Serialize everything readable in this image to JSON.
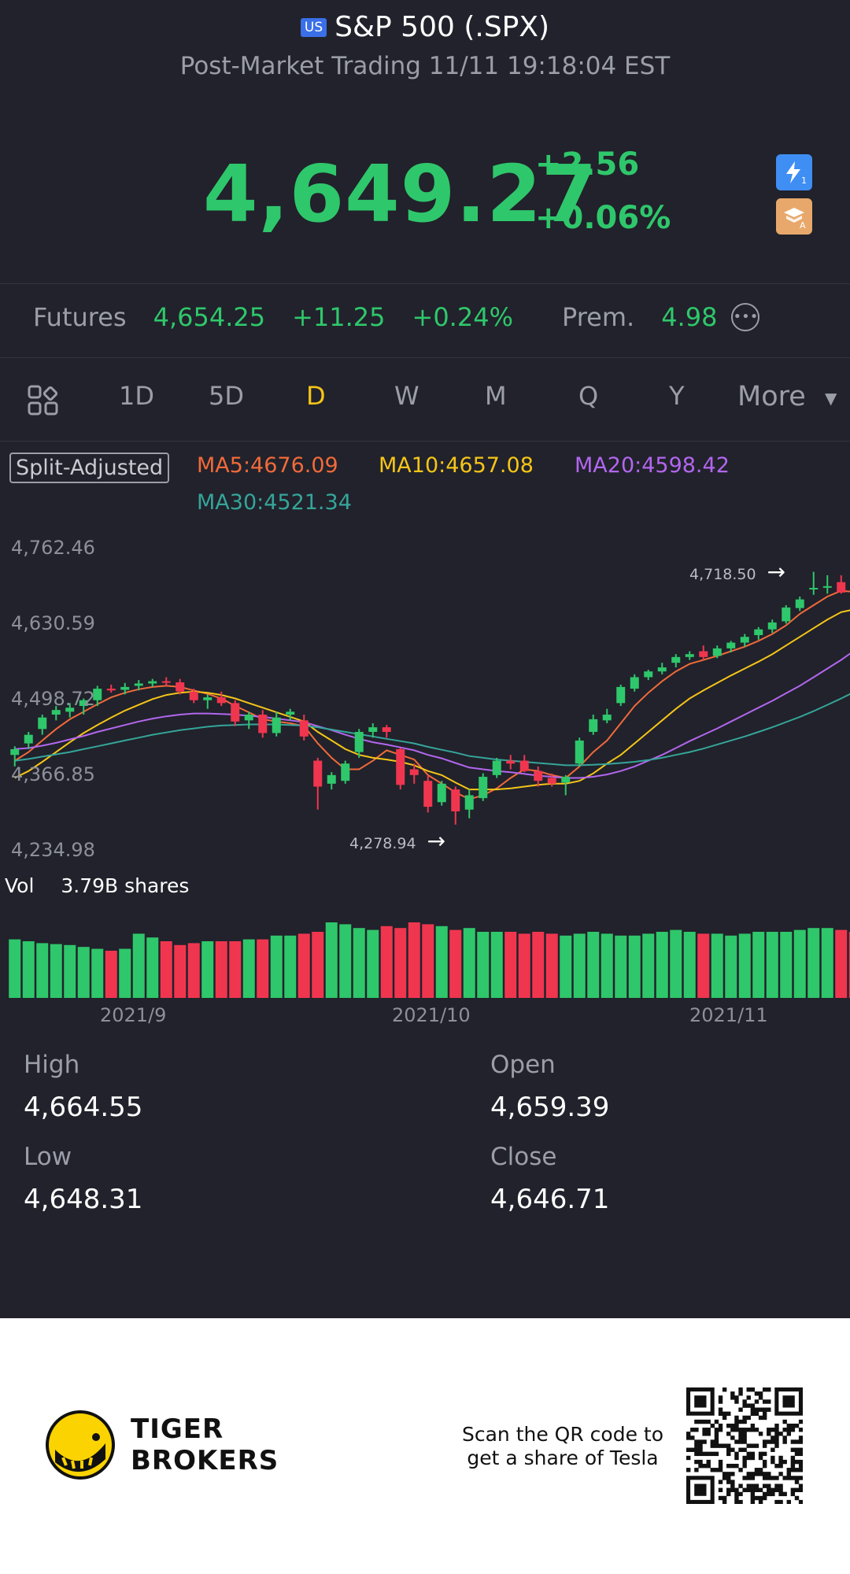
{
  "header": {
    "badge": "US",
    "title": "S&P 500 (.SPX)",
    "subtitle": "Post-Market Trading 11/11 19:18:04 EST"
  },
  "quote": {
    "price": "4,649.27",
    "change": "+2.56",
    "change_pct": "+0.06%",
    "icons": [
      "flash-trade-icon",
      "education-icon"
    ]
  },
  "futures": {
    "label": "Futures",
    "price": "4,654.25",
    "change": "+11.25",
    "change_pct": "+0.24%",
    "prem_label": "Prem.",
    "prem_value": "4.98"
  },
  "tabs": {
    "items": [
      "1D",
      "5D",
      "D",
      "W",
      "M",
      "Q",
      "Y"
    ],
    "active": "D",
    "more": "More"
  },
  "indicators": {
    "split_adjusted": "Split-Adjusted",
    "ma5": "MA5:4676.09",
    "ma10": "MA10:4657.08",
    "ma20": "MA20:4598.42",
    "ma30": "MA30:4521.34"
  },
  "colors": {
    "up": "#2fc76b",
    "down": "#f0364f",
    "ma5": "#f06a3a",
    "ma10": "#f5c518",
    "ma20": "#b266ee",
    "ma30": "#35a59a",
    "background": "#21222b"
  },
  "chart_data": {
    "type": "candlestick",
    "y_axis_labels": [
      "4,762.46",
      "4,630.59",
      "4,498.72",
      "4,366.85",
      "4,234.98"
    ],
    "ylim": [
      4234.98,
      4762.46
    ],
    "x_axis_labels": [
      "2021/9",
      "2021/10",
      "2021/11"
    ],
    "max_annotation": "4,718.50",
    "min_annotation": "4,278.94",
    "candles": [
      {
        "o": 4400,
        "h": 4415,
        "l": 4380,
        "c": 4410
      },
      {
        "o": 4420,
        "h": 4440,
        "l": 4410,
        "c": 4435
      },
      {
        "o": 4445,
        "h": 4470,
        "l": 4435,
        "c": 4465
      },
      {
        "o": 4470,
        "h": 4485,
        "l": 4460,
        "c": 4478
      },
      {
        "o": 4475,
        "h": 4490,
        "l": 4465,
        "c": 4482
      },
      {
        "o": 4485,
        "h": 4498,
        "l": 4470,
        "c": 4495
      },
      {
        "o": 4495,
        "h": 4520,
        "l": 4485,
        "c": 4515
      },
      {
        "o": 4515,
        "h": 4522,
        "l": 4508,
        "c": 4512
      },
      {
        "o": 4513,
        "h": 4525,
        "l": 4505,
        "c": 4518
      },
      {
        "o": 4520,
        "h": 4530,
        "l": 4512,
        "c": 4524
      },
      {
        "o": 4524,
        "h": 4532,
        "l": 4518,
        "c": 4528
      },
      {
        "o": 4528,
        "h": 4535,
        "l": 4520,
        "c": 4526
      },
      {
        "o": 4526,
        "h": 4532,
        "l": 4505,
        "c": 4510
      },
      {
        "o": 4510,
        "h": 4515,
        "l": 4490,
        "c": 4495
      },
      {
        "o": 4495,
        "h": 4505,
        "l": 4480,
        "c": 4500
      },
      {
        "o": 4500,
        "h": 4510,
        "l": 4485,
        "c": 4490
      },
      {
        "o": 4490,
        "h": 4495,
        "l": 4450,
        "c": 4458
      },
      {
        "o": 4460,
        "h": 4475,
        "l": 4445,
        "c": 4470
      },
      {
        "o": 4470,
        "h": 4478,
        "l": 4430,
        "c": 4438
      },
      {
        "o": 4438,
        "h": 4475,
        "l": 4432,
        "c": 4465
      },
      {
        "o": 4470,
        "h": 4480,
        "l": 4460,
        "c": 4475
      },
      {
        "o": 4460,
        "h": 4470,
        "l": 4425,
        "c": 4432
      },
      {
        "o": 4390,
        "h": 4395,
        "l": 4305,
        "c": 4345
      },
      {
        "o": 4350,
        "h": 4370,
        "l": 4340,
        "c": 4365
      },
      {
        "o": 4355,
        "h": 4390,
        "l": 4350,
        "c": 4385
      },
      {
        "o": 4405,
        "h": 4445,
        "l": 4395,
        "c": 4440
      },
      {
        "o": 4440,
        "h": 4455,
        "l": 4430,
        "c": 4448
      },
      {
        "o": 4448,
        "h": 4452,
        "l": 4430,
        "c": 4440
      },
      {
        "o": 4410,
        "h": 4412,
        "l": 4340,
        "c": 4348
      },
      {
        "o": 4375,
        "h": 4385,
        "l": 4350,
        "c": 4365
      },
      {
        "o": 4355,
        "h": 4365,
        "l": 4300,
        "c": 4310
      },
      {
        "o": 4318,
        "h": 4355,
        "l": 4312,
        "c": 4350
      },
      {
        "o": 4340,
        "h": 4345,
        "l": 4279,
        "c": 4302
      },
      {
        "o": 4305,
        "h": 4340,
        "l": 4290,
        "c": 4330
      },
      {
        "o": 4325,
        "h": 4368,
        "l": 4320,
        "c": 4362
      },
      {
        "o": 4365,
        "h": 4395,
        "l": 4360,
        "c": 4390
      },
      {
        "o": 4390,
        "h": 4400,
        "l": 4375,
        "c": 4385
      },
      {
        "o": 4390,
        "h": 4400,
        "l": 4370,
        "c": 4372
      },
      {
        "o": 4372,
        "h": 4380,
        "l": 4345,
        "c": 4355
      },
      {
        "o": 4360,
        "h": 4368,
        "l": 4345,
        "c": 4350
      },
      {
        "o": 4352,
        "h": 4365,
        "l": 4330,
        "c": 4362
      },
      {
        "o": 4385,
        "h": 4430,
        "l": 4380,
        "c": 4425
      },
      {
        "o": 4440,
        "h": 4470,
        "l": 4435,
        "c": 4462
      },
      {
        "o": 4460,
        "h": 4480,
        "l": 4455,
        "c": 4470
      },
      {
        "o": 4490,
        "h": 4522,
        "l": 4485,
        "c": 4518
      },
      {
        "o": 4515,
        "h": 4540,
        "l": 4510,
        "c": 4535
      },
      {
        "o": 4535,
        "h": 4548,
        "l": 4530,
        "c": 4545
      },
      {
        "o": 4545,
        "h": 4560,
        "l": 4540,
        "c": 4552
      },
      {
        "o": 4560,
        "h": 4575,
        "l": 4552,
        "c": 4570
      },
      {
        "o": 4570,
        "h": 4580,
        "l": 4565,
        "c": 4575
      },
      {
        "o": 4580,
        "h": 4590,
        "l": 4565,
        "c": 4570
      },
      {
        "o": 4572,
        "h": 4590,
        "l": 4568,
        "c": 4585
      },
      {
        "o": 4585,
        "h": 4598,
        "l": 4578,
        "c": 4595
      },
      {
        "o": 4595,
        "h": 4610,
        "l": 4588,
        "c": 4605
      },
      {
        "o": 4608,
        "h": 4622,
        "l": 4600,
        "c": 4618
      },
      {
        "o": 4618,
        "h": 4635,
        "l": 4612,
        "c": 4630
      },
      {
        "o": 4632,
        "h": 4660,
        "l": 4628,
        "c": 4656
      },
      {
        "o": 4655,
        "h": 4675,
        "l": 4650,
        "c": 4670
      },
      {
        "o": 4690,
        "h": 4718,
        "l": 4678,
        "c": 4690
      },
      {
        "o": 4692,
        "h": 4712,
        "l": 4680,
        "c": 4693
      },
      {
        "o": 4700,
        "h": 4712,
        "l": 4680,
        "c": 4682
      },
      {
        "o": 4682,
        "h": 4690,
        "l": 4650,
        "c": 4660
      },
      {
        "o": 4665,
        "h": 4672,
        "l": 4645,
        "c": 4650
      }
    ],
    "ma": {
      "MA5": [
        4390,
        4405,
        4425,
        4445,
        4462,
        4475,
        4488,
        4500,
        4508,
        4514,
        4518,
        4520,
        4518,
        4512,
        4506,
        4498,
        4485,
        4474,
        4462,
        4458,
        4455,
        4450,
        4420,
        4395,
        4375,
        4375,
        4390,
        4408,
        4400,
        4392,
        4365,
        4350,
        4335,
        4323,
        4330,
        4342,
        4360,
        4375,
        4372,
        4365,
        4360,
        4380,
        4405,
        4425,
        4455,
        4485,
        4508,
        4528,
        4545,
        4558,
        4565,
        4572,
        4580,
        4588,
        4598,
        4610,
        4625,
        4645,
        4660,
        4675,
        4685,
        4683,
        4676
      ],
      "MA10": [
        4360,
        4372,
        4388,
        4405,
        4422,
        4438,
        4452,
        4465,
        4477,
        4487,
        4497,
        4504,
        4508,
        4510,
        4508,
        4504,
        4498,
        4490,
        4482,
        4474,
        4466,
        4458,
        4440,
        4425,
        4410,
        4400,
        4395,
        4392,
        4388,
        4382,
        4372,
        4365,
        4352,
        4340,
        4340,
        4340,
        4342,
        4345,
        4348,
        4350,
        4350,
        4355,
        4368,
        4385,
        4400,
        4420,
        4440,
        4460,
        4480,
        4498,
        4512,
        4525,
        4538,
        4550,
        4562,
        4575,
        4590,
        4605,
        4620,
        4635,
        4648,
        4653,
        4657
      ],
      "MA20": [
        4410,
        4412,
        4416,
        4421,
        4427,
        4433,
        4440,
        4446,
        4452,
        4458,
        4463,
        4467,
        4470,
        4472,
        4472,
        4471,
        4470,
        4468,
        4466,
        4463,
        4460,
        4457,
        4450,
        4443,
        4435,
        4428,
        4422,
        4418,
        4413,
        4408,
        4400,
        4394,
        4386,
        4378,
        4375,
        4372,
        4370,
        4367,
        4364,
        4362,
        4360,
        4360,
        4362,
        4366,
        4372,
        4380,
        4390,
        4400,
        4412,
        4424,
        4435,
        4446,
        4458,
        4470,
        4482,
        4494,
        4507,
        4520,
        4535,
        4550,
        4565,
        4582,
        4598
      ],
      "MA30": [
        4390,
        4393,
        4397,
        4401,
        4405,
        4410,
        4415,
        4420,
        4425,
        4430,
        4435,
        4439,
        4443,
        4446,
        4449,
        4451,
        4452,
        4453,
        4453,
        4453,
        4452,
        4451,
        4448,
        4444,
        4440,
        4436,
        4432,
        4428,
        4424,
        4420,
        4414,
        4409,
        4404,
        4398,
        4395,
        4392,
        4390,
        4388,
        4386,
        4384,
        4382,
        4382,
        4383,
        4384,
        4386,
        4388,
        4391,
        4395,
        4400,
        4405,
        4411,
        4418,
        4425,
        4432,
        4440,
        4448,
        4457,
        4466,
        4476,
        4487,
        4498,
        4510,
        4521
      ]
    },
    "volume": {
      "label": "Vol",
      "value": "3.79B shares",
      "bars": [
        62,
        60,
        58,
        57,
        56,
        54,
        52,
        50,
        52,
        68,
        64,
        60,
        56,
        58,
        60,
        60,
        60,
        62,
        62,
        66,
        66,
        68,
        70,
        80,
        78,
        74,
        72,
        76,
        74,
        80,
        78,
        76,
        72,
        74,
        70,
        70,
        70,
        68,
        70,
        68,
        66,
        68,
        70,
        68,
        66,
        66,
        68,
        70,
        72,
        70,
        68,
        68,
        66,
        68,
        70,
        70,
        70,
        72,
        74,
        74,
        72,
        70,
        68
      ]
    }
  },
  "stats": {
    "high_label": "High",
    "high_value": "4,664.55",
    "open_label": "Open",
    "open_value": "4,659.39",
    "low_label": "Low",
    "low_value": "4,648.31",
    "close_label": "Close",
    "close_value": "4,646.71"
  },
  "footer": {
    "brand_line1": "TIGER",
    "brand_line2": "BROKERS",
    "scan_line1": "Scan the QR code to",
    "scan_line2": "get a share of Tesla"
  }
}
